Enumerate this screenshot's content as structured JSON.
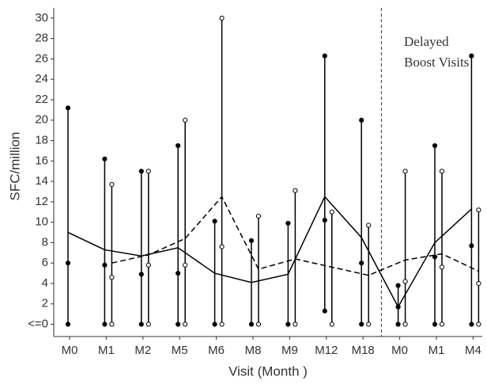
{
  "chart_data": {
    "type": "range-line",
    "y_label": "SFC/million",
    "x_label": "Visit (Month )",
    "annotation_lines": [
      "Delayed",
      "Boost Visits"
    ],
    "categories": [
      "M0",
      "M1",
      "M2",
      "M5",
      "M6",
      "M8",
      "M9",
      "M12",
      "M18",
      "M0",
      "M1",
      "M4"
    ],
    "ylim": [
      -1.2,
      31
    ],
    "yticks": [
      {
        "value": 0,
        "label": "<=0"
      },
      2,
      4,
      6,
      8,
      10,
      12,
      14,
      16,
      18,
      20,
      22,
      24,
      26,
      28,
      30
    ],
    "series": [
      {
        "marker": "filled",
        "dash": "solid",
        "color": "#000000",
        "values": [
          9.0,
          7.3,
          6.7,
          7.5,
          5.0,
          4.1,
          4.9,
          12.5,
          8.5,
          1.7,
          8.0,
          11.3
        ],
        "max": [
          21.2,
          16.2,
          15.0,
          17.5,
          10.1,
          8.2,
          9.9,
          26.3,
          20.0,
          3.8,
          17.5,
          26.3
        ],
        "mid": [
          6.0,
          5.8,
          4.9,
          5.0,
          null,
          null,
          null,
          10.2,
          6.0,
          1.7,
          6.6,
          7.7
        ],
        "min": [
          0,
          0,
          0,
          0,
          0,
          0,
          0,
          1.3,
          0,
          0,
          0,
          0
        ]
      },
      {
        "marker": "open",
        "dash": "dashed",
        "color": "#000000",
        "values": [
          null,
          6.0,
          6.8,
          8.4,
          12.5,
          5.4,
          6.4,
          5.6,
          4.8,
          6.3,
          6.9,
          5.2
        ],
        "max": [
          null,
          13.7,
          15.0,
          20.0,
          30.0,
          10.6,
          13.1,
          11.0,
          9.7,
          15.0,
          15.0,
          11.2
        ],
        "mid": [
          null,
          4.6,
          5.8,
          5.8,
          7.6,
          null,
          null,
          null,
          null,
          4.2,
          5.6,
          4.0
        ],
        "min": [
          null,
          0,
          0,
          0,
          0,
          0,
          0,
          0,
          0,
          0,
          0,
          0
        ]
      }
    ]
  }
}
